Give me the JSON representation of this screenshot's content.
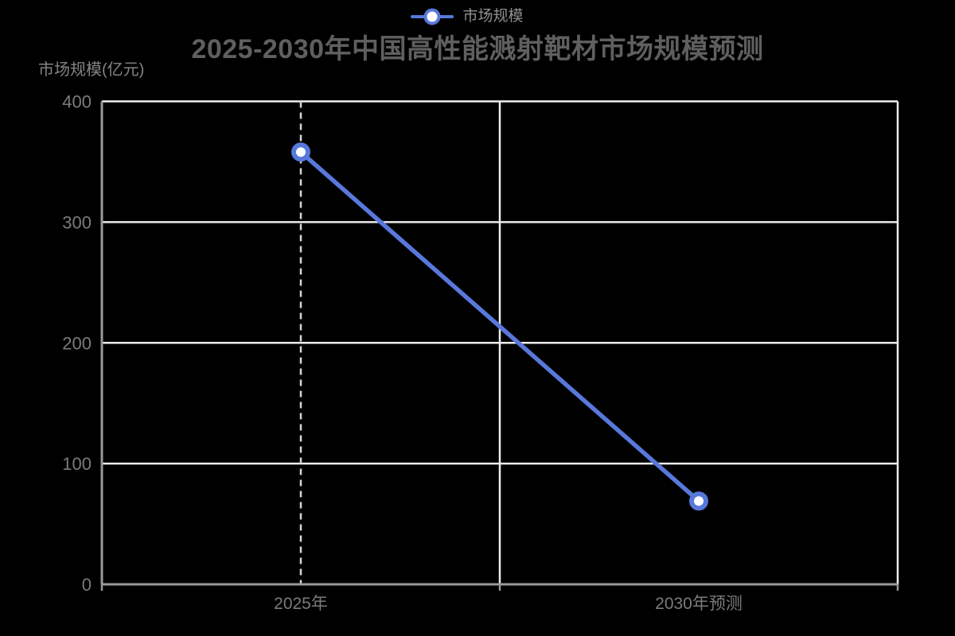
{
  "title": {
    "text": "2025-2030年中国高性能溅射靶材市场规模预测"
  },
  "legend": {
    "position": "top-center",
    "items": [
      {
        "label": "市场规模",
        "marker": "line-with-circle"
      }
    ]
  },
  "y_axis": {
    "name": "市场规模(亿元)",
    "tick_labels": [
      "0",
      "100",
      "200",
      "300",
      "400"
    ]
  },
  "x_axis": {
    "labels": [
      "2025年",
      "2030年预测"
    ]
  },
  "chart_data": {
    "type": "line",
    "title": "2025-2030年中国高性能溅射靶材市场规模预测",
    "categories": [
      "2025年",
      "2030年预测"
    ],
    "series": [
      {
        "name": "市场规模",
        "values": [
          358,
          69
        ],
        "color": "#5878db",
        "marker": "circle-white-fill"
      }
    ],
    "ylabel": "市场规模(亿元)",
    "xlabel": "",
    "ylim": [
      0,
      400
    ],
    "yticks": [
      0,
      100,
      200,
      300,
      400
    ],
    "grid": true,
    "legend_position": "top-center",
    "annotations": [
      {
        "type": "vertical-dashed-guide",
        "category": "2025年"
      }
    ]
  },
  "colors": {
    "background": "#000000",
    "title_text": "#5f5f5f",
    "legend_text": "#8f8f8f",
    "axis_text": "#7b7b7b",
    "axis_name_text": "#858585",
    "axis_line": "#9a9a9a",
    "grid_line": "#ededed",
    "guide_dash": "#d6d6d6",
    "series_blue": "#5878db",
    "marker_fill": "#ffffff"
  }
}
